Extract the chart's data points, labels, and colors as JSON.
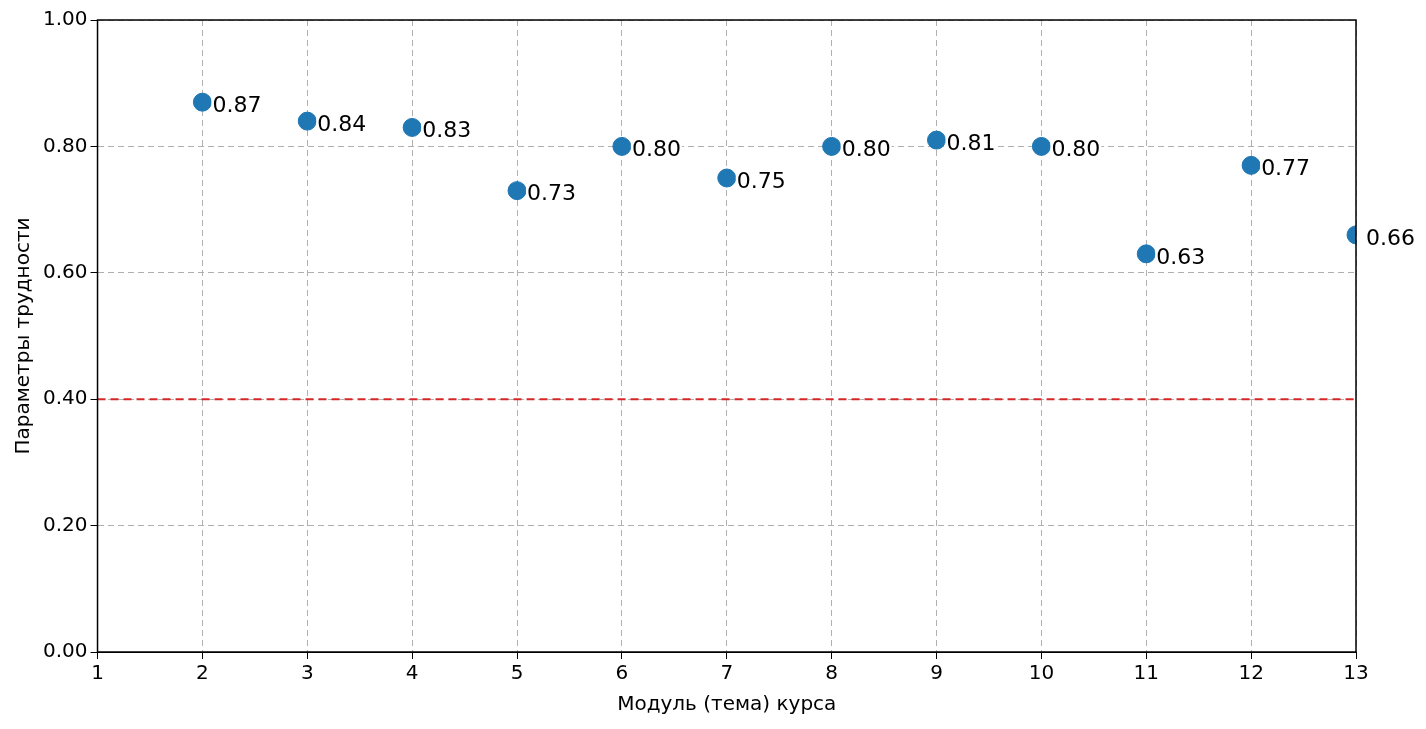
{
  "chart_data": {
    "type": "scatter",
    "xlabel": "Модуль (тема) курса",
    "ylabel": "Параметры трудности",
    "x": [
      2,
      3,
      4,
      5,
      6,
      7,
      8,
      9,
      10,
      11,
      12,
      13
    ],
    "series": [
      {
        "color": "#1f77b4",
        "values": [
          0.87,
          0.84,
          0.83,
          0.73,
          0.8,
          0.75,
          0.8,
          0.81,
          0.8,
          0.63,
          0.77,
          0.66
        ],
        "value_labels": [
          "0.87",
          "0.84",
          "0.83",
          "0.73",
          "0.80",
          "0.75",
          "0.80",
          "0.81",
          "0.80",
          "0.63",
          "0.77",
          "0.66"
        ]
      }
    ],
    "xlim": [
      1,
      13
    ],
    "xticks": [
      1,
      2,
      3,
      4,
      5,
      6,
      7,
      8,
      9,
      10,
      11,
      12,
      13
    ],
    "ylim": [
      0,
      1
    ],
    "yticks": [
      {
        "value": 0,
        "label": "0.00"
      },
      {
        "value": 0.2,
        "label": "0.20"
      },
      {
        "value": 0.4,
        "label": "0.40"
      },
      {
        "value": 0.6,
        "label": "0.60"
      },
      {
        "value": 0.8,
        "label": "0.80"
      },
      {
        "value": 1,
        "label": "1.00"
      }
    ],
    "ref_lines": [
      {
        "axis": "y",
        "value": 0.4,
        "color": "#d62728",
        "line_style": "dashed"
      }
    ],
    "grid": true,
    "marker": "circle"
  }
}
